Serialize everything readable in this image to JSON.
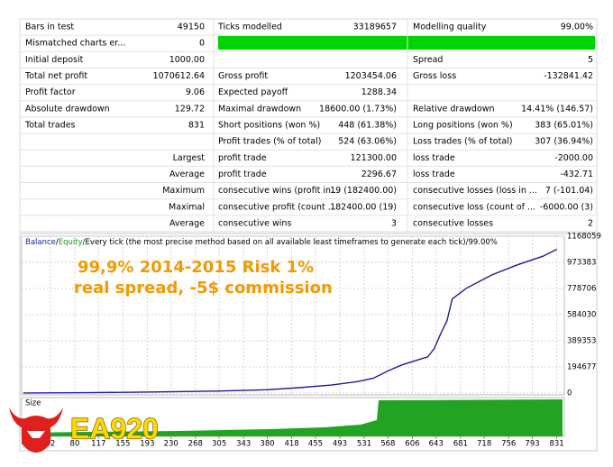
{
  "table": {
    "rows": [
      [
        "Bars in test",
        "49150",
        "Ticks modelled",
        "33189657",
        "Modelling quality",
        "99.00%"
      ],
      [
        "Mismatched charts er...",
        "0",
        null,
        null,
        null,
        null
      ],
      [
        "Initial deposit",
        "1000.00",
        null,
        null,
        "Spread",
        "5"
      ],
      [
        "Total net profit",
        "1070612.64",
        "Gross profit",
        "1203454.06",
        "Gross loss",
        "-132841.42"
      ],
      [
        "Profit factor",
        "9.06",
        "Expected payoff",
        "1288.34",
        null,
        null
      ],
      [
        "Absolute drawdown",
        "129.72",
        "Maximal drawdown",
        "18600.00 (1.73%)",
        "Relative drawdown",
        "14.41% (146.57)"
      ],
      [
        "Total trades",
        "831",
        "Short positions (won %)",
        "448 (61.38%)",
        "Long positions (won %)",
        "383 (65.01%)"
      ],
      [
        null,
        null,
        "Profit trades (% of total)",
        "524 (63.06%)",
        "Loss trades (% of total)",
        "307 (36.94%)"
      ],
      [
        null,
        "Largest",
        "profit trade",
        "121300.00",
        "loss trade",
        "-2000.00"
      ],
      [
        null,
        "Average",
        "profit trade",
        "2296.67",
        "loss trade",
        "-432.71"
      ],
      [
        null,
        "Maximum",
        "consecutive wins (profit in...",
        "19 (182400.00)",
        "consecutive losses (loss in ...",
        "7 (-101.04)"
      ],
      [
        null,
        "Maximal",
        "consecutive profit (count ...",
        "182400.00 (19)",
        "consecutive loss (count of ...",
        "-6000.00 (3)"
      ],
      [
        null,
        "Average",
        "consecutive wins",
        "3",
        "consecutive losses",
        "2"
      ]
    ]
  },
  "chart_data": {
    "type": "line",
    "legend_separator": "/",
    "legend_extra": [
      "Equity",
      "Every tick (the most precise method based on all available least timeframes to generate each tick)",
      "99.00%"
    ],
    "legend_colors": [
      "#1a9a1a",
      "#000000",
      "#000000"
    ],
    "annotations": [
      "99,9% 2014-2015 Risk 1%",
      "real spread, -5$ commission"
    ],
    "size_label": "Size",
    "x": [
      0,
      100,
      200,
      300,
      380,
      430,
      480,
      520,
      545,
      570,
      590,
      610,
      630,
      640,
      650,
      660,
      668,
      690,
      730,
      770,
      810,
      831
    ],
    "series": [
      {
        "name": "Balance",
        "color": "#1c1c96",
        "values": [
          1000,
          3000,
          8000,
          15000,
          25000,
          40000,
          60000,
          85000,
          110000,
          170000,
          210000,
          240000,
          270000,
          330000,
          440000,
          540000,
          700000,
          780000,
          880000,
          955000,
          1020000,
          1070612.64
        ]
      }
    ],
    "xlim": [
      0,
      840
    ],
    "xticks": [
      42,
      80,
      117,
      155,
      193,
      230,
      268,
      305,
      343,
      380,
      418,
      455,
      493,
      531,
      568,
      606,
      643,
      681,
      718,
      756,
      793,
      831
    ],
    "ylim": [
      0,
      1168059
    ],
    "yticks": [
      0,
      194677,
      389353,
      584030,
      778706,
      973383,
      1168059
    ],
    "grid": true
  },
  "watermark": "EA920"
}
